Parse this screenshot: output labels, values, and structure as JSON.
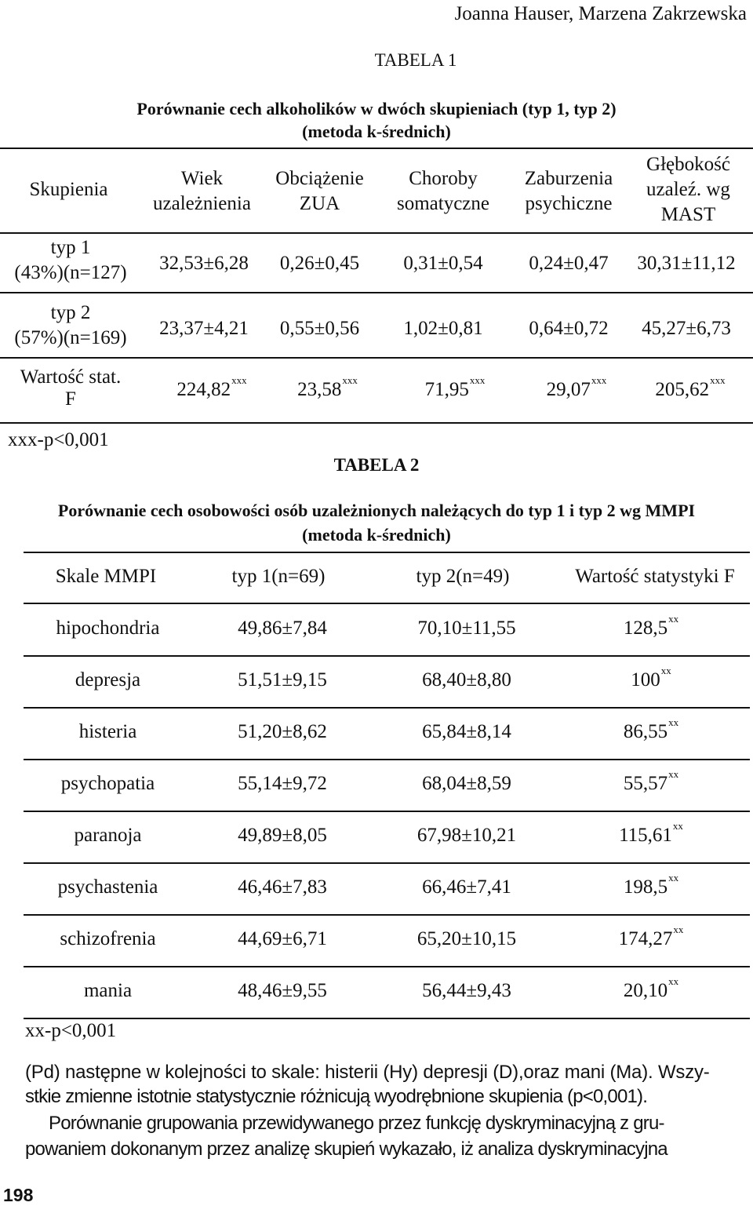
{
  "header": {
    "author": "Joanna Hauser, Marzena Zakrzewska"
  },
  "table1": {
    "label": "TABELA 1",
    "caption_line1": "Porównanie cech alkoholików w dwóch skupieniach (typ 1, typ 2)",
    "caption_line2": "(metoda k-średnich)",
    "columns": [
      [
        "Skupienia"
      ],
      [
        "Wiek",
        "uzależnienia"
      ],
      [
        "Obciążenie",
        "ZUA"
      ],
      [
        "Choroby",
        "somatyczne"
      ],
      [
        "Zaburzenia",
        "psychiczne"
      ],
      [
        "Głębokość",
        "uzaleź. wg",
        "MAST"
      ]
    ],
    "rows": [
      {
        "label": [
          "typ 1",
          "(43%)(n=127)"
        ],
        "values": [
          "32,53±6,28",
          "0,26±0,45",
          "0,31±0,54",
          "0,24±0,47",
          "30,31±11,12"
        ]
      },
      {
        "label": [
          "typ 2",
          "(57%)(n=169)"
        ],
        "values": [
          "23,37±4,21",
          "0,55±0,56",
          "1,02±0,81",
          "0,64±0,72",
          "45,27±6,73"
        ]
      }
    ],
    "f_row": {
      "label": [
        "Wartość stat.",
        "F"
      ],
      "values": [
        "224,82",
        "23,58",
        "71,95",
        "29,07",
        "205,62"
      ],
      "sup": "xxx"
    },
    "footnote": "xxx-p<0,001"
  },
  "table2": {
    "label": "TABELA 2",
    "caption_line1": "Porównanie cech osobowości osób uzależnionych należących do typ 1 i typ 2 wg MMPI",
    "caption_line2": "(metoda k-średnich)",
    "columns": [
      "Skale MMPI",
      "typ 1(n=69)",
      "typ 2(n=49)",
      "Wartość statystyki F"
    ],
    "rows": [
      {
        "scale": "hipochondria",
        "t1": "49,86±7,84",
        "t2": "70,10±11,55",
        "f": "128,5",
        "sup": "xx"
      },
      {
        "scale": "depresja",
        "t1": "51,51±9,15",
        "t2": "68,40±8,80",
        "f": "100",
        "sup": "xx"
      },
      {
        "scale": "histeria",
        "t1": "51,20±8,62",
        "t2": "65,84±8,14",
        "f": "86,55",
        "sup": "xx"
      },
      {
        "scale": "psychopatia",
        "t1": "55,14±9,72",
        "t2": "68,04±8,59",
        "f": "55,57",
        "sup": "xx"
      },
      {
        "scale": "paranoja",
        "t1": "49,89±8,05",
        "t2": "67,98±10,21",
        "f": "115,61",
        "sup": "xx"
      },
      {
        "scale": "psychastenia",
        "t1": "46,46±7,83",
        "t2": "66,46±7,41",
        "f": "198,5",
        "sup": "xx"
      },
      {
        "scale": "schizofrenia",
        "t1": "44,69±6,71",
        "t2": "65,20±10,15",
        "f": "174,27",
        "sup": "xx"
      },
      {
        "scale": "mania",
        "t1": "48,46±9,55",
        "t2": "56,44±9,43",
        "f": "20,10",
        "sup": "xx"
      }
    ],
    "footnote": "xx-p<0,001"
  },
  "body_text": [
    "(Pd) następne w kolejności to skale: histerii (Hy) depresji (D),oraz mani (Ma). Wszy-",
    "stkie zmienne istotnie statystycznie różnicują wyodrębnione skupienia (p<0,001).",
    "Porównanie grupowania przewidywanego przez funkcję dyskryminacyjną z gru-",
    "powaniem dokonanym przez analizę skupień wykazało, iż analiza dyskryminacyjna"
  ],
  "page_number": "198"
}
